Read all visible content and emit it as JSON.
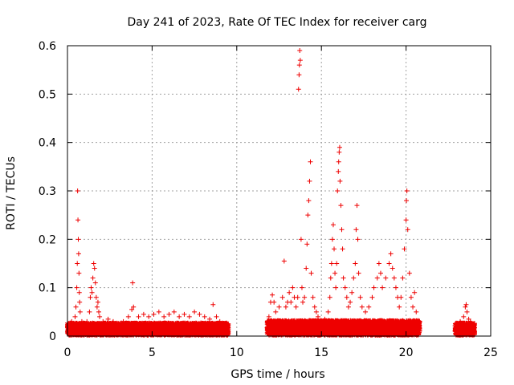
{
  "chart_data": {
    "type": "scatter",
    "title": "Day 241 of 2023, Rate Of TEC Index for receiver carg",
    "xlabel": "GPS time / hours",
    "ylabel": "ROTI / TECUs",
    "xlim": [
      0,
      25
    ],
    "ylim": [
      0,
      0.6
    ],
    "x_ticks": [
      "0",
      "5",
      "10",
      "15",
      "20",
      "25"
    ],
    "y_ticks": [
      "0",
      "0.1",
      "0.2",
      "0.3",
      "0.4",
      "0.5",
      "0.6"
    ],
    "grid": true,
    "marker": "+",
    "series_color": "#ee0000",
    "series": [
      {
        "name": "ROTI",
        "points": [
          [
            0.05,
            0.012
          ],
          [
            0.15,
            0.02
          ],
          [
            0.25,
            0.03
          ],
          [
            0.35,
            0.025
          ],
          [
            0.45,
            0.04
          ],
          [
            0.5,
            0.06
          ],
          [
            0.55,
            0.1
          ],
          [
            0.58,
            0.15
          ],
          [
            0.6,
            0.3
          ],
          [
            0.62,
            0.24
          ],
          [
            0.64,
            0.2
          ],
          [
            0.66,
            0.17
          ],
          [
            0.68,
            0.13
          ],
          [
            0.7,
            0.09
          ],
          [
            0.72,
            0.07
          ],
          [
            0.75,
            0.05
          ],
          [
            0.85,
            0.03
          ],
          [
            0.95,
            0.025
          ],
          [
            1.05,
            0.02
          ],
          [
            1.15,
            0.03
          ],
          [
            1.3,
            0.05
          ],
          [
            1.35,
            0.08
          ],
          [
            1.4,
            0.1
          ],
          [
            1.45,
            0.09
          ],
          [
            1.5,
            0.12
          ],
          [
            1.55,
            0.15
          ],
          [
            1.6,
            0.14
          ],
          [
            1.65,
            0.11
          ],
          [
            1.7,
            0.08
          ],
          [
            1.75,
            0.06
          ],
          [
            1.8,
            0.07
          ],
          [
            1.85,
            0.05
          ],
          [
            1.9,
            0.04
          ],
          [
            2.1,
            0.03
          ],
          [
            2.4,
            0.035
          ],
          [
            2.7,
            0.03
          ],
          [
            3.0,
            0.025
          ],
          [
            3.3,
            0.03
          ],
          [
            3.6,
            0.04
          ],
          [
            3.8,
            0.055
          ],
          [
            3.85,
            0.11
          ],
          [
            3.9,
            0.06
          ],
          [
            4.2,
            0.04
          ],
          [
            4.5,
            0.045
          ],
          [
            4.8,
            0.04
          ],
          [
            5.1,
            0.045
          ],
          [
            5.4,
            0.05
          ],
          [
            5.7,
            0.04
          ],
          [
            6.0,
            0.045
          ],
          [
            6.3,
            0.05
          ],
          [
            6.6,
            0.04
          ],
          [
            6.9,
            0.045
          ],
          [
            7.2,
            0.04
          ],
          [
            7.5,
            0.05
          ],
          [
            7.8,
            0.045
          ],
          [
            8.1,
            0.04
          ],
          [
            8.4,
            0.035
          ],
          [
            8.6,
            0.065
          ],
          [
            8.8,
            0.04
          ],
          [
            9.0,
            0.03
          ],
          [
            9.2,
            0.025
          ],
          [
            9.4,
            0.02
          ],
          [
            11.9,
            0.04
          ],
          [
            12.0,
            0.07
          ],
          [
            12.1,
            0.085
          ],
          [
            12.2,
            0.07
          ],
          [
            12.3,
            0.05
          ],
          [
            12.5,
            0.06
          ],
          [
            12.7,
            0.08
          ],
          [
            12.8,
            0.155
          ],
          [
            12.9,
            0.06
          ],
          [
            13.0,
            0.07
          ],
          [
            13.1,
            0.09
          ],
          [
            13.2,
            0.07
          ],
          [
            13.3,
            0.1
          ],
          [
            13.4,
            0.08
          ],
          [
            13.5,
            0.06
          ],
          [
            13.6,
            0.08
          ],
          [
            13.65,
            0.51
          ],
          [
            13.68,
            0.54
          ],
          [
            13.7,
            0.56
          ],
          [
            13.72,
            0.59
          ],
          [
            13.75,
            0.57
          ],
          [
            13.8,
            0.2
          ],
          [
            13.85,
            0.1
          ],
          [
            13.9,
            0.07
          ],
          [
            14.0,
            0.08
          ],
          [
            14.1,
            0.14
          ],
          [
            14.15,
            0.19
          ],
          [
            14.2,
            0.25
          ],
          [
            14.25,
            0.28
          ],
          [
            14.3,
            0.32
          ],
          [
            14.35,
            0.36
          ],
          [
            14.4,
            0.13
          ],
          [
            14.5,
            0.08
          ],
          [
            14.6,
            0.06
          ],
          [
            14.7,
            0.05
          ],
          [
            14.8,
            0.04
          ],
          [
            15.0,
            0.03
          ],
          [
            15.2,
            0.035
          ],
          [
            15.4,
            0.05
          ],
          [
            15.5,
            0.08
          ],
          [
            15.55,
            0.12
          ],
          [
            15.6,
            0.15
          ],
          [
            15.65,
            0.2
          ],
          [
            15.7,
            0.23
          ],
          [
            15.75,
            0.18
          ],
          [
            15.8,
            0.13
          ],
          [
            15.85,
            0.1
          ],
          [
            15.9,
            0.15
          ],
          [
            15.95,
            0.3
          ],
          [
            16.0,
            0.34
          ],
          [
            16.02,
            0.36
          ],
          [
            16.05,
            0.38
          ],
          [
            16.08,
            0.39
          ],
          [
            16.1,
            0.32
          ],
          [
            16.15,
            0.27
          ],
          [
            16.2,
            0.22
          ],
          [
            16.25,
            0.18
          ],
          [
            16.3,
            0.12
          ],
          [
            16.4,
            0.1
          ],
          [
            16.5,
            0.08
          ],
          [
            16.6,
            0.06
          ],
          [
            16.7,
            0.07
          ],
          [
            16.8,
            0.09
          ],
          [
            16.9,
            0.12
          ],
          [
            17.0,
            0.15
          ],
          [
            17.05,
            0.22
          ],
          [
            17.1,
            0.27
          ],
          [
            17.15,
            0.2
          ],
          [
            17.2,
            0.13
          ],
          [
            17.3,
            0.08
          ],
          [
            17.4,
            0.06
          ],
          [
            17.6,
            0.05
          ],
          [
            17.8,
            0.06
          ],
          [
            18.0,
            0.08
          ],
          [
            18.1,
            0.1
          ],
          [
            18.3,
            0.12
          ],
          [
            18.4,
            0.15
          ],
          [
            18.5,
            0.13
          ],
          [
            18.6,
            0.1
          ],
          [
            18.8,
            0.12
          ],
          [
            19.0,
            0.15
          ],
          [
            19.1,
            0.17
          ],
          [
            19.2,
            0.14
          ],
          [
            19.3,
            0.12
          ],
          [
            19.4,
            0.1
          ],
          [
            19.5,
            0.08
          ],
          [
            19.6,
            0.06
          ],
          [
            19.7,
            0.08
          ],
          [
            19.8,
            0.12
          ],
          [
            19.9,
            0.18
          ],
          [
            20.0,
            0.24
          ],
          [
            20.02,
            0.28
          ],
          [
            20.05,
            0.3
          ],
          [
            20.1,
            0.22
          ],
          [
            20.2,
            0.13
          ],
          [
            20.3,
            0.08
          ],
          [
            20.4,
            0.06
          ],
          [
            20.5,
            0.09
          ],
          [
            20.6,
            0.05
          ],
          [
            20.7,
            0.03
          ],
          [
            20.75,
            0.02
          ],
          [
            23.0,
            0.02
          ],
          [
            23.1,
            0.025
          ],
          [
            23.2,
            0.03
          ],
          [
            23.3,
            0.025
          ],
          [
            23.4,
            0.04
          ],
          [
            23.5,
            0.06
          ],
          [
            23.55,
            0.065
          ],
          [
            23.6,
            0.05
          ],
          [
            23.7,
            0.035
          ],
          [
            23.8,
            0.03
          ],
          [
            23.9,
            0.02
          ],
          [
            24.0,
            0.015
          ]
        ]
      }
    ],
    "dense_coverage": [
      {
        "x_start": 0.0,
        "x_end": 9.5,
        "y_max": 0.025,
        "density": 6
      },
      {
        "x_start": 11.8,
        "x_end": 20.8,
        "y_max": 0.03,
        "density": 7
      },
      {
        "x_start": 22.9,
        "x_end": 24.05,
        "y_max": 0.025,
        "density": 6
      }
    ]
  }
}
